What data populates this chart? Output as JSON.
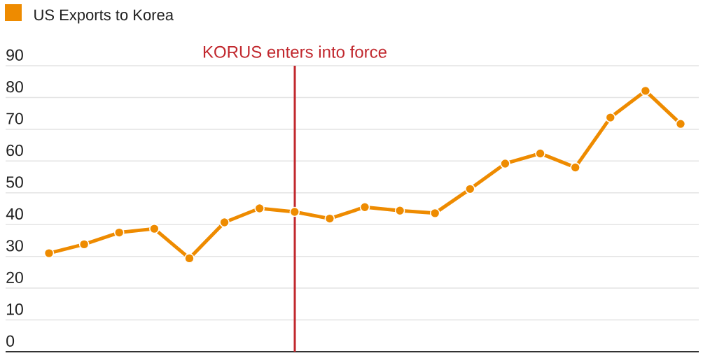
{
  "chart_data": {
    "type": "line",
    "categories": [
      null,
      null,
      null,
      null,
      null,
      null,
      null,
      null,
      null,
      null,
      null,
      null,
      null,
      null,
      null,
      null,
      null,
      null,
      null
    ],
    "series": [
      {
        "name": "US Exports to Korea",
        "color": "#ee8b00",
        "values": [
          31.0,
          33.8,
          37.5,
          38.7,
          29.4,
          40.7,
          45.1,
          44.0,
          41.9,
          45.5,
          44.4,
          43.6,
          51.2,
          59.2,
          62.4,
          58.0,
          73.7,
          82.1,
          71.7
        ]
      }
    ],
    "ylim": [
      0,
      90
    ],
    "yticks": [
      0,
      10,
      20,
      30,
      40,
      50,
      60,
      70,
      80,
      90
    ],
    "grid": "y",
    "legend": "top left",
    "marker": "circle",
    "line_style": "solid",
    "annotations": [
      "KORUS enters into force"
    ]
  }
}
